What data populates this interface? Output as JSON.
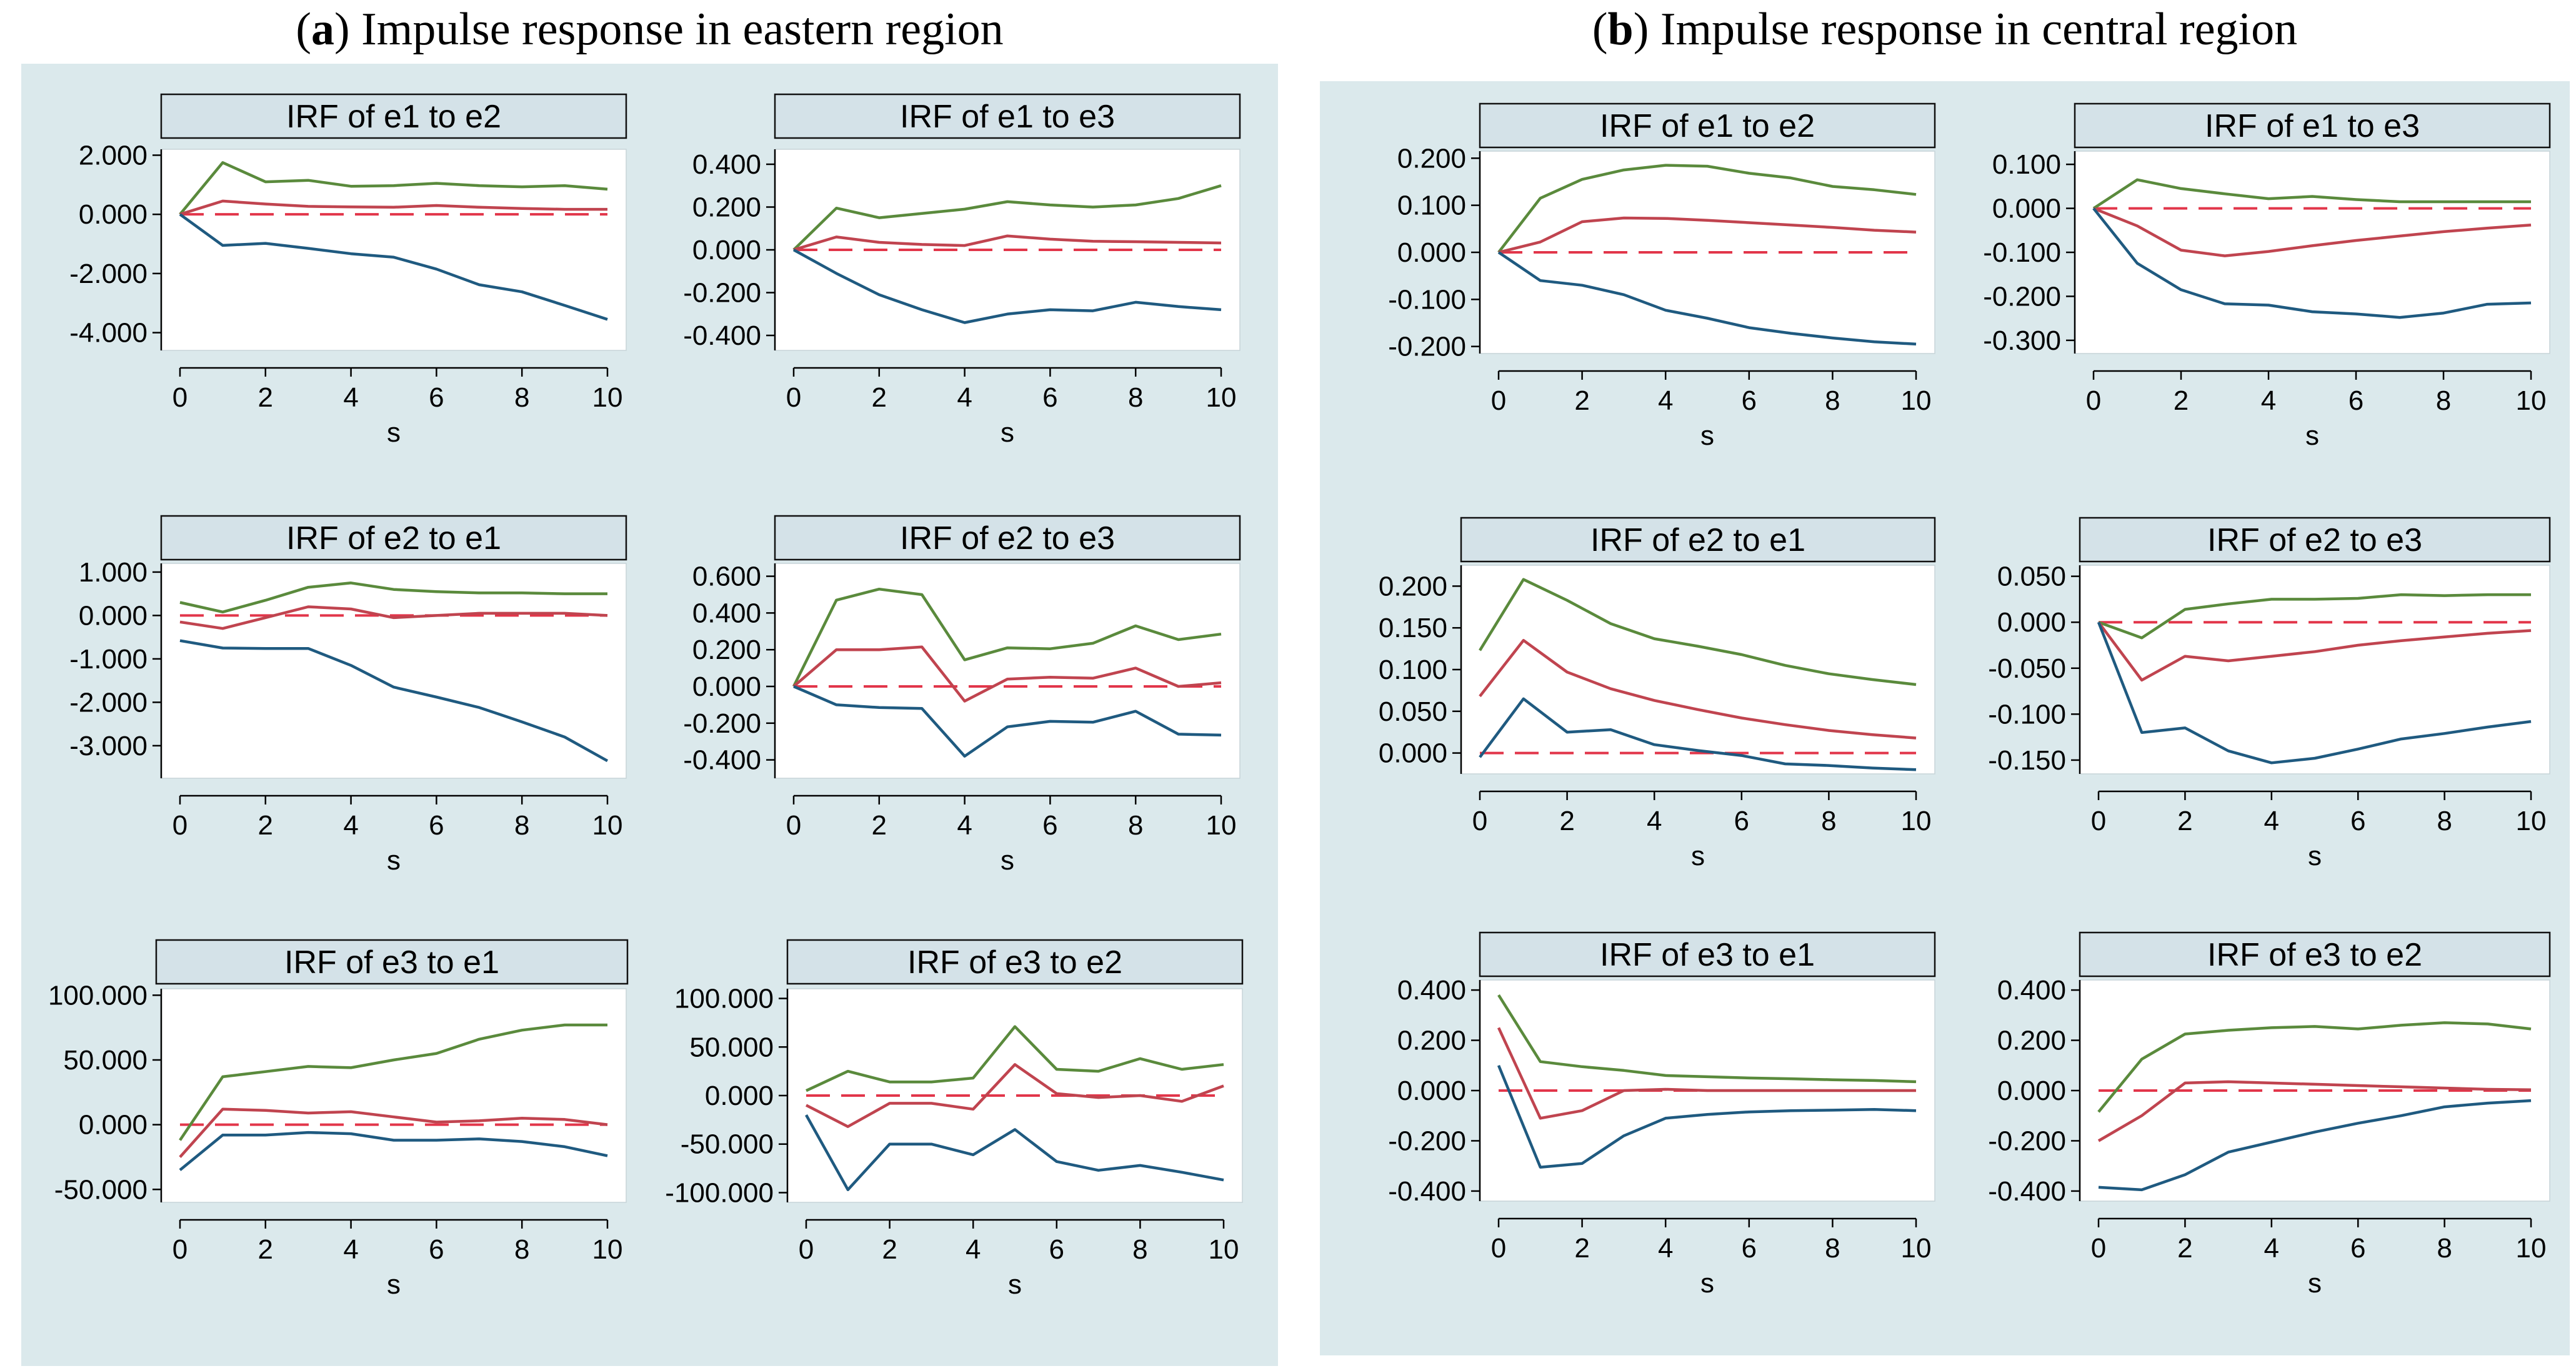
{
  "titles": {
    "a_letter": "a",
    "a_text": " Impulse response in eastern region",
    "b_letter": "b",
    "b_text": " Impulse response in central region"
  },
  "colors": {
    "background": "#dbe9ec",
    "upper": "#5a8a3c",
    "irf": "#c0444f",
    "lower": "#1f5a80",
    "zero": "#e2364a"
  },
  "chart_data": [
    {
      "id": "a1",
      "type": "line",
      "title": "IRF of e1 to e2",
      "xlabel": "s",
      "ylabel": "",
      "x": [
        0,
        1,
        2,
        3,
        4,
        5,
        6,
        7,
        8,
        9,
        10
      ],
      "xticks": [
        0,
        2,
        4,
        6,
        8,
        10
      ],
      "ylim": [
        -4.6,
        2.2
      ],
      "yticks": [
        -4,
        -2,
        0,
        2
      ],
      "ytick_labels": [
        "-4.000",
        "-2.000",
        "0.000",
        "2.000"
      ],
      "series": [
        {
          "role": "upper",
          "values": [
            0,
            1.75,
            1.1,
            1.15,
            0.95,
            0.97,
            1.05,
            0.97,
            0.93,
            0.97,
            0.85
          ]
        },
        {
          "role": "irf",
          "values": [
            0,
            0.45,
            0.35,
            0.27,
            0.25,
            0.24,
            0.3,
            0.24,
            0.2,
            0.17,
            0.17
          ]
        },
        {
          "role": "lower",
          "values": [
            0,
            -1.05,
            -0.98,
            -1.15,
            -1.33,
            -1.45,
            -1.85,
            -2.38,
            -2.62,
            -3.08,
            -3.55
          ]
        }
      ]
    },
    {
      "id": "a2",
      "type": "line",
      "title": "IRF of e1 to e3",
      "xlabel": "s",
      "ylabel": "",
      "x": [
        0,
        1,
        2,
        3,
        4,
        5,
        6,
        7,
        8,
        9,
        10
      ],
      "xticks": [
        0,
        2,
        4,
        6,
        8,
        10
      ],
      "ylim": [
        -0.47,
        0.47
      ],
      "yticks": [
        -0.4,
        -0.2,
        0,
        0.2,
        0.4
      ],
      "ytick_labels": [
        "-0.400",
        "-0.200",
        "0.000",
        "0.200",
        "0.400"
      ],
      "series": [
        {
          "role": "upper",
          "values": [
            0,
            0.195,
            0.15,
            0.17,
            0.19,
            0.225,
            0.21,
            0.2,
            0.21,
            0.24,
            0.3
          ]
        },
        {
          "role": "irf",
          "values": [
            0,
            0.06,
            0.035,
            0.025,
            0.02,
            0.065,
            0.05,
            0.04,
            0.038,
            0.035,
            0.032
          ]
        },
        {
          "role": "lower",
          "values": [
            0,
            -0.11,
            -0.21,
            -0.28,
            -0.34,
            -0.3,
            -0.28,
            -0.285,
            -0.245,
            -0.265,
            -0.28
          ]
        }
      ]
    },
    {
      "id": "a3",
      "type": "line",
      "title": "IRF of e2 to e1",
      "xlabel": "s",
      "ylabel": "",
      "x": [
        0,
        1,
        2,
        3,
        4,
        5,
        6,
        7,
        8,
        9,
        10
      ],
      "xticks": [
        0,
        2,
        4,
        6,
        8,
        10
      ],
      "ylim": [
        -3.75,
        1.2
      ],
      "yticks": [
        -3,
        -2,
        -1,
        0,
        1
      ],
      "ytick_labels": [
        "-3.000",
        "-2.000",
        "-1.000",
        "0.000",
        "1.000"
      ],
      "series": [
        {
          "role": "upper",
          "values": [
            0.3,
            0.08,
            0.35,
            0.65,
            0.75,
            0.6,
            0.55,
            0.52,
            0.52,
            0.5,
            0.5
          ]
        },
        {
          "role": "irf",
          "values": [
            -0.15,
            -0.3,
            -0.05,
            0.2,
            0.15,
            -0.05,
            0,
            0.05,
            0.05,
            0.05,
            0
          ]
        },
        {
          "role": "lower",
          "values": [
            -0.58,
            -0.75,
            -0.76,
            -0.76,
            -1.15,
            -1.65,
            -1.88,
            -2.12,
            -2.45,
            -2.8,
            -3.35
          ]
        }
      ]
    },
    {
      "id": "a4",
      "type": "line",
      "title": "IRF of e2 to e3",
      "xlabel": "s",
      "ylabel": "",
      "x": [
        0,
        1,
        2,
        3,
        4,
        5,
        6,
        7,
        8,
        9,
        10
      ],
      "xticks": [
        0,
        2,
        4,
        6,
        8,
        10
      ],
      "ylim": [
        -0.5,
        0.67
      ],
      "yticks": [
        -0.4,
        -0.2,
        0,
        0.2,
        0.4,
        0.6
      ],
      "ytick_labels": [
        "-0.400",
        "-0.200",
        "0.000",
        "0.200",
        "0.400",
        "0.600"
      ],
      "series": [
        {
          "role": "upper",
          "values": [
            0,
            0.47,
            0.53,
            0.5,
            0.145,
            0.21,
            0.205,
            0.235,
            0.33,
            0.255,
            0.285
          ]
        },
        {
          "role": "irf",
          "values": [
            0,
            0.2,
            0.2,
            0.215,
            -0.08,
            0.04,
            0.05,
            0.045,
            0.1,
            0,
            0.02
          ]
        },
        {
          "role": "lower",
          "values": [
            0,
            -0.1,
            -0.115,
            -0.12,
            -0.38,
            -0.22,
            -0.19,
            -0.195,
            -0.135,
            -0.26,
            -0.265
          ]
        }
      ]
    },
    {
      "id": "a5",
      "type": "line",
      "title": "IRF of e3 to e1",
      "xlabel": "s",
      "ylabel": "",
      "x": [
        0,
        1,
        2,
        3,
        4,
        5,
        6,
        7,
        8,
        9,
        10
      ],
      "xticks": [
        0,
        2,
        4,
        6,
        8,
        10
      ],
      "ylim": [
        -60,
        105
      ],
      "yticks": [
        -50,
        0,
        50,
        100
      ],
      "ytick_labels": [
        "-50.000",
        "0.000",
        "50.000",
        "100.000"
      ],
      "series": [
        {
          "role": "upper",
          "values": [
            -12,
            37,
            41,
            45,
            44,
            50,
            55,
            66,
            73,
            77,
            77
          ]
        },
        {
          "role": "irf",
          "values": [
            -25,
            12,
            11,
            9,
            10,
            6,
            2,
            3,
            5,
            4,
            0
          ]
        },
        {
          "role": "lower",
          "values": [
            -35,
            -8,
            -8,
            -6,
            -7,
            -12,
            -12,
            -11,
            -13,
            -17,
            -24
          ]
        }
      ]
    },
    {
      "id": "a6",
      "type": "line",
      "title": "IRF of e3 to e2",
      "xlabel": "s",
      "ylabel": "",
      "x": [
        0,
        1,
        2,
        3,
        4,
        5,
        6,
        7,
        8,
        9,
        10
      ],
      "xticks": [
        0,
        2,
        4,
        6,
        8,
        10
      ],
      "ylim": [
        -110,
        110
      ],
      "yticks": [
        -100,
        -50,
        0,
        50,
        100
      ],
      "ytick_labels": [
        "-100.000",
        "-50.000",
        "0.000",
        "50.000",
        "100.000"
      ],
      "series": [
        {
          "role": "upper",
          "values": [
            5,
            25,
            14,
            14,
            18,
            71,
            27,
            25,
            38,
            27,
            32
          ]
        },
        {
          "role": "irf",
          "values": [
            -10,
            -32,
            -8,
            -8,
            -14,
            32,
            2,
            -2,
            0,
            -6,
            10
          ]
        },
        {
          "role": "lower",
          "values": [
            -20,
            -97,
            -50,
            -50,
            -61,
            -35,
            -68,
            -77,
            -72,
            -79,
            -87
          ]
        }
      ]
    },
    {
      "id": "b1",
      "type": "line",
      "title": "IRF of e1 to e2",
      "xlabel": "s",
      "ylabel": "",
      "x": [
        0,
        1,
        2,
        3,
        4,
        5,
        6,
        7,
        8,
        9,
        10
      ],
      "xticks": [
        0,
        2,
        4,
        6,
        8,
        10
      ],
      "ylim": [
        -0.215,
        0.215
      ],
      "yticks": [
        -0.2,
        -0.1,
        0,
        0.1,
        0.2
      ],
      "ytick_labels": [
        "-0.200",
        "-0.100",
        "0.000",
        "0.100",
        "0.200"
      ],
      "series": [
        {
          "role": "upper",
          "values": [
            0,
            0.115,
            0.155,
            0.175,
            0.185,
            0.183,
            0.168,
            0.158,
            0.14,
            0.133,
            0.123
          ]
        },
        {
          "role": "irf",
          "values": [
            0,
            0.022,
            0.065,
            0.073,
            0.072,
            0.068,
            0.063,
            0.058,
            0.053,
            0.047,
            0.043
          ]
        },
        {
          "role": "lower",
          "values": [
            0,
            -0.06,
            -0.07,
            -0.09,
            -0.123,
            -0.14,
            -0.16,
            -0.172,
            -0.182,
            -0.19,
            -0.195
          ]
        }
      ]
    },
    {
      "id": "b2",
      "type": "line",
      "title": "IRF of e1 to e3",
      "xlabel": "s",
      "ylabel": "",
      "x": [
        0,
        1,
        2,
        3,
        4,
        5,
        6,
        7,
        8,
        9,
        10
      ],
      "xticks": [
        0,
        2,
        4,
        6,
        8,
        10
      ],
      "ylim": [
        -0.33,
        0.13
      ],
      "yticks": [
        -0.3,
        -0.2,
        -0.1,
        0,
        0.1
      ],
      "ytick_labels": [
        "-0.300",
        "-0.200",
        "-0.100",
        "0.000",
        "0.100"
      ],
      "series": [
        {
          "role": "upper",
          "values": [
            0,
            0.065,
            0.045,
            0.033,
            0.022,
            0.027,
            0.02,
            0.015,
            0.015,
            0.015,
            0.015
          ]
        },
        {
          "role": "irf",
          "values": [
            0,
            -0.04,
            -0.095,
            -0.108,
            -0.098,
            -0.085,
            -0.073,
            -0.063,
            -0.053,
            -0.045,
            -0.038
          ]
        },
        {
          "role": "lower",
          "values": [
            0,
            -0.125,
            -0.185,
            -0.217,
            -0.22,
            -0.235,
            -0.24,
            -0.248,
            -0.238,
            -0.218,
            -0.215
          ]
        }
      ]
    },
    {
      "id": "b3",
      "type": "line",
      "title": "IRF of e2 to e1",
      "xlabel": "s",
      "ylabel": "",
      "x": [
        0,
        1,
        2,
        3,
        4,
        5,
        6,
        7,
        8,
        9,
        10
      ],
      "xticks": [
        0,
        2,
        4,
        6,
        8,
        10
      ],
      "ylim": [
        -0.025,
        0.225
      ],
      "yticks": [
        0,
        0.05,
        0.1,
        0.15,
        0.2
      ],
      "ytick_labels": [
        "0.000",
        "0.050",
        "0.100",
        "0.150",
        "0.200"
      ],
      "series": [
        {
          "role": "upper",
          "values": [
            0.123,
            0.208,
            0.183,
            0.155,
            0.137,
            0.128,
            0.118,
            0.105,
            0.095,
            0.088,
            0.082
          ]
        },
        {
          "role": "irf",
          "values": [
            0.068,
            0.135,
            0.097,
            0.077,
            0.063,
            0.052,
            0.042,
            0.034,
            0.027,
            0.022,
            0.018
          ]
        },
        {
          "role": "lower",
          "values": [
            -0.005,
            0.065,
            0.025,
            0.028,
            0.01,
            0.003,
            -0.003,
            -0.013,
            -0.015,
            -0.018,
            -0.02
          ]
        }
      ]
    },
    {
      "id": "b4",
      "type": "line",
      "title": "IRF of e2 to e3",
      "xlabel": "s",
      "ylabel": "",
      "x": [
        0,
        1,
        2,
        3,
        4,
        5,
        6,
        7,
        8,
        9,
        10
      ],
      "xticks": [
        0,
        2,
        4,
        6,
        8,
        10
      ],
      "ylim": [
        -0.165,
        0.062
      ],
      "yticks": [
        -0.15,
        -0.1,
        -0.05,
        0,
        0.05
      ],
      "ytick_labels": [
        "-0.150",
        "-0.100",
        "-0.050",
        "0.000",
        "0.050"
      ],
      "series": [
        {
          "role": "upper",
          "values": [
            0,
            -0.017,
            0.014,
            0.02,
            0.025,
            0.025,
            0.026,
            0.03,
            0.029,
            0.03,
            0.03
          ]
        },
        {
          "role": "irf",
          "values": [
            0,
            -0.063,
            -0.037,
            -0.042,
            -0.037,
            -0.032,
            -0.025,
            -0.02,
            -0.016,
            -0.012,
            -0.009
          ]
        },
        {
          "role": "lower",
          "values": [
            0,
            -0.12,
            -0.115,
            -0.14,
            -0.153,
            -0.148,
            -0.138,
            -0.127,
            -0.121,
            -0.114,
            -0.108
          ]
        }
      ]
    },
    {
      "id": "b5",
      "type": "line",
      "title": "IRF of e3 to e1",
      "xlabel": "s",
      "ylabel": "",
      "x": [
        0,
        1,
        2,
        3,
        4,
        5,
        6,
        7,
        8,
        9,
        10
      ],
      "xticks": [
        0,
        2,
        4,
        6,
        8,
        10
      ],
      "ylim": [
        -0.44,
        0.44
      ],
      "yticks": [
        -0.4,
        -0.2,
        0,
        0.2,
        0.4
      ],
      "ytick_labels": [
        "-0.400",
        "-0.200",
        "0.000",
        "0.200",
        "0.400"
      ],
      "series": [
        {
          "role": "upper",
          "values": [
            0.38,
            0.115,
            0.095,
            0.08,
            0.06,
            0.055,
            0.05,
            0.047,
            0.043,
            0.04,
            0.035
          ]
        },
        {
          "role": "irf",
          "values": [
            0.25,
            -0.11,
            -0.08,
            0,
            0.005,
            0,
            0,
            0,
            0,
            0,
            0
          ]
        },
        {
          "role": "lower",
          "values": [
            0.1,
            -0.305,
            -0.29,
            -0.18,
            -0.11,
            -0.095,
            -0.085,
            -0.08,
            -0.078,
            -0.075,
            -0.08
          ]
        }
      ]
    },
    {
      "id": "b6",
      "type": "line",
      "title": "IRF of e3 to e2",
      "xlabel": "s",
      "ylabel": "",
      "x": [
        0,
        1,
        2,
        3,
        4,
        5,
        6,
        7,
        8,
        9,
        10
      ],
      "xticks": [
        0,
        2,
        4,
        6,
        8,
        10
      ],
      "ylim": [
        -0.44,
        0.44
      ],
      "yticks": [
        -0.4,
        -0.2,
        0,
        0.2,
        0.4
      ],
      "ytick_labels": [
        "-0.400",
        "-0.200",
        "0.000",
        "0.200",
        "0.400"
      ],
      "series": [
        {
          "role": "upper",
          "values": [
            -0.085,
            0.125,
            0.225,
            0.24,
            0.25,
            0.255,
            0.245,
            0.26,
            0.27,
            0.265,
            0.245
          ]
        },
        {
          "role": "irf",
          "values": [
            -0.2,
            -0.1,
            0.03,
            0.035,
            0.03,
            0.025,
            0.02,
            0.015,
            0.01,
            0.005,
            0.003
          ]
        },
        {
          "role": "lower",
          "values": [
            -0.385,
            -0.395,
            -0.335,
            -0.245,
            -0.205,
            -0.165,
            -0.13,
            -0.1,
            -0.065,
            -0.05,
            -0.04
          ]
        }
      ]
    }
  ]
}
